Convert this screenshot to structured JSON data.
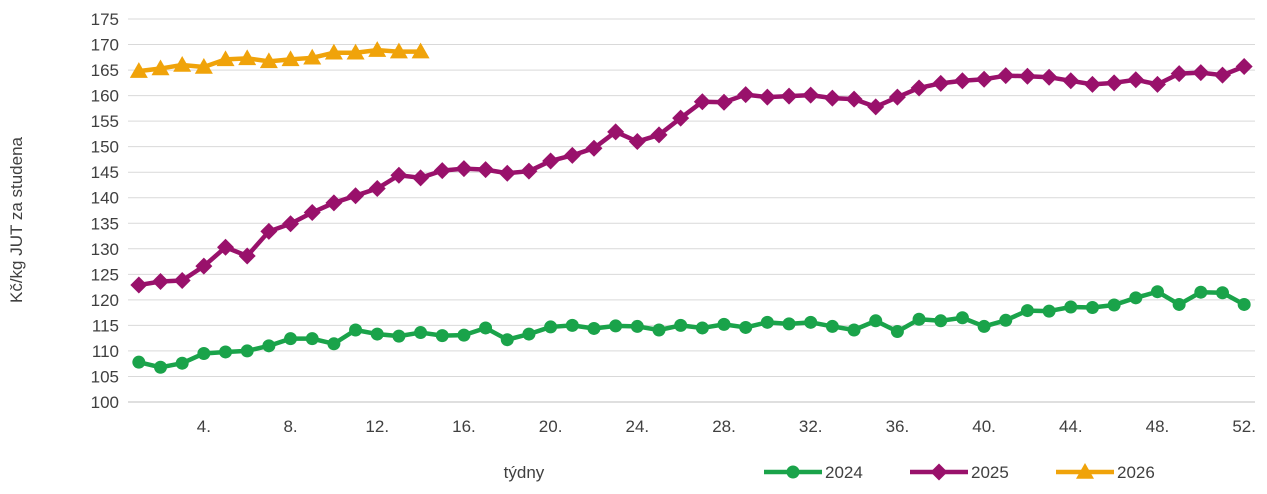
{
  "chart_data": {
    "type": "line",
    "title": "",
    "xlabel": "týdny",
    "ylabel": "Kč/kg JUT za studena",
    "ylim": [
      100,
      175
    ],
    "ytick_step": 5,
    "xlim": [
      1,
      52
    ],
    "x_tick_values": [
      4,
      8,
      12,
      16,
      20,
      24,
      28,
      32,
      36,
      40,
      44,
      48,
      52
    ],
    "x_tick_labels": [
      "4.",
      "8.",
      "12.",
      "16.",
      "20.",
      "24.",
      "28.",
      "32.",
      "36.",
      "40.",
      "44.",
      "48.",
      "52."
    ],
    "grid": true,
    "legend_position": "bottom-right",
    "series": [
      {
        "name": "2024",
        "color": "#1aa34a",
        "marker": "circle",
        "x_start": 1,
        "values": [
          107.8,
          106.8,
          107.6,
          109.5,
          109.8,
          110.0,
          111.0,
          112.4,
          112.4,
          111.4,
          114.1,
          113.3,
          112.9,
          113.6,
          113.0,
          113.1,
          114.5,
          112.2,
          113.3,
          114.7,
          115.0,
          114.4,
          114.9,
          114.8,
          114.1,
          115.0,
          114.5,
          115.2,
          114.6,
          115.6,
          115.3,
          115.6,
          114.8,
          114.1,
          115.9,
          113.8,
          116.2,
          115.9,
          116.5,
          114.8,
          116.0,
          117.9,
          117.8,
          118.6,
          118.5,
          119.0,
          120.4,
          121.6,
          119.1,
          121.5,
          121.4,
          119.1
        ]
      },
      {
        "name": "2025",
        "color": "#99116b",
        "marker": "diamond",
        "x_start": 1,
        "values": [
          122.9,
          123.6,
          123.8,
          126.6,
          130.3,
          128.6,
          133.4,
          134.9,
          137.1,
          139.0,
          140.4,
          141.8,
          144.4,
          143.9,
          145.3,
          145.7,
          145.5,
          144.8,
          145.2,
          147.2,
          148.3,
          149.7,
          152.9,
          151.0,
          152.3,
          155.6,
          158.8,
          158.7,
          160.2,
          159.7,
          159.9,
          160.1,
          159.5,
          159.3,
          157.8,
          159.7,
          161.5,
          162.4,
          162.9,
          163.2,
          163.9,
          163.8,
          163.6,
          162.9,
          162.2,
          162.5,
          163.1,
          162.2,
          164.3,
          164.5,
          164.0,
          165.7
        ]
      },
      {
        "name": "2026",
        "color": "#f0a30a",
        "marker": "triangle",
        "x_start": 1,
        "values": [
          164.8,
          165.3,
          166.0,
          165.6,
          167.1,
          167.3,
          166.7,
          167.1,
          167.4,
          168.4,
          168.4,
          168.9,
          168.6,
          168.6
        ]
      }
    ]
  }
}
